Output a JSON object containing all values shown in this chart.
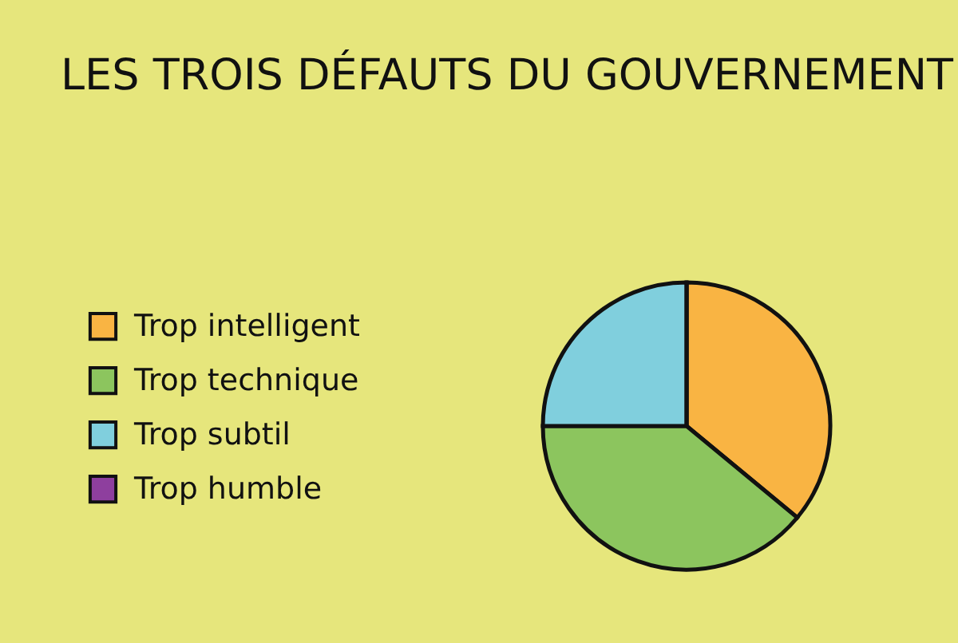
{
  "chart_data": {
    "type": "pie",
    "title": "LES TROIS DÉFAUTS DU GOUVERNEMENT",
    "categories": [
      "Trop intelligent",
      "Trop technique",
      "Trop subtil",
      "Trop humble"
    ],
    "values": [
      36,
      39,
      25,
      0
    ],
    "colors": [
      "#f9b443",
      "#8cc55e",
      "#80cfdd",
      "#8e3f9e"
    ],
    "legend": "left"
  }
}
